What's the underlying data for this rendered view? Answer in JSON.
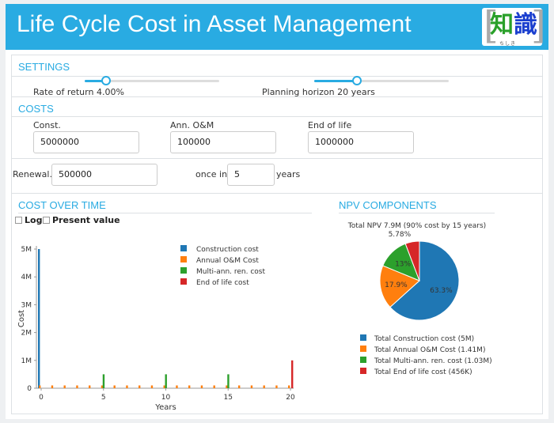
{
  "header": {
    "title": "Life Cycle Cost in Asset Management",
    "logo_text": "知識",
    "logo_sub": "ちしき"
  },
  "settings": {
    "title": "SETTINGS",
    "rate_label": "Rate of return 4.00%",
    "horizon_label": "Planning horizon 20 years",
    "rate_level": 0.16,
    "horizon_level": 0.32
  },
  "costs": {
    "title": "COSTS",
    "const_label": "Const.",
    "const_value": "5000000",
    "om_label": "Ann. O&M",
    "om_value": "100000",
    "eol_label": "End of life",
    "eol_value": "1000000"
  },
  "renewal": {
    "label": "Renewal.",
    "value": "500000",
    "once_in": "once in",
    "period": "5",
    "years": "years"
  },
  "cost_over_time": {
    "title": "COST OVER TIME",
    "log_label": "Log",
    "present_value_label": "Present value"
  },
  "npv": {
    "title": "NPV COMPONENTS",
    "summary": "Total NPV 7.9M (90% cost by 15 years)"
  },
  "colors": {
    "construction": "#1f77b4",
    "om": "#ff7f0e",
    "renewal": "#2ca02c",
    "eol": "#d62728",
    "accent": "#29abe2"
  },
  "chart_data": [
    {
      "type": "bar",
      "xlabel": "Years",
      "ylabel": "Cost",
      "x_ticks": [
        "0",
        "5",
        "10",
        "15",
        "20"
      ],
      "y_ticks": [
        "0",
        "1M",
        "2M",
        "3M",
        "4M",
        "5M"
      ],
      "xlim": [
        0,
        20
      ],
      "ylim": [
        0,
        5000000
      ],
      "legend_position": "top-right",
      "x": [
        0,
        1,
        2,
        3,
        4,
        5,
        6,
        7,
        8,
        9,
        10,
        11,
        12,
        13,
        14,
        15,
        16,
        17,
        18,
        19,
        20
      ],
      "series": [
        {
          "name": "Construction cost",
          "color": "#1f77b4",
          "values": [
            5000000,
            0,
            0,
            0,
            0,
            0,
            0,
            0,
            0,
            0,
            0,
            0,
            0,
            0,
            0,
            0,
            0,
            0,
            0,
            0,
            0
          ]
        },
        {
          "name": "Annual O&M Cost",
          "color": "#ff7f0e",
          "values": [
            100000,
            100000,
            100000,
            100000,
            100000,
            100000,
            100000,
            100000,
            100000,
            100000,
            100000,
            100000,
            100000,
            100000,
            100000,
            100000,
            100000,
            100000,
            100000,
            100000,
            100000
          ]
        },
        {
          "name": "Multi-ann. ren. cost",
          "color": "#2ca02c",
          "values": [
            0,
            0,
            0,
            0,
            0,
            500000,
            0,
            0,
            0,
            0,
            500000,
            0,
            0,
            0,
            0,
            500000,
            0,
            0,
            0,
            0,
            0
          ]
        },
        {
          "name": "End of life cost",
          "color": "#d62728",
          "values": [
            0,
            0,
            0,
            0,
            0,
            0,
            0,
            0,
            0,
            0,
            0,
            0,
            0,
            0,
            0,
            0,
            0,
            0,
            0,
            0,
            1000000
          ]
        }
      ]
    },
    {
      "type": "pie",
      "title": "Total NPV 7.9M (90% cost by 15 years)",
      "legend_position": "bottom",
      "slices": [
        {
          "name": "Total Construction cost (5M)",
          "value": 63.3,
          "label": "63.3%",
          "color": "#1f77b4"
        },
        {
          "name": "Total Annual O&M Cost (1.41M)",
          "value": 17.9,
          "label": "17.9%",
          "color": "#ff7f0e"
        },
        {
          "name": "Total Multi-ann. ren. cost (1.03M)",
          "value": 13.0,
          "label": "13%",
          "color": "#2ca02c"
        },
        {
          "name": "Total End of life cost (456K)",
          "value": 5.78,
          "label": "5.78%",
          "color": "#d62728"
        }
      ]
    }
  ]
}
